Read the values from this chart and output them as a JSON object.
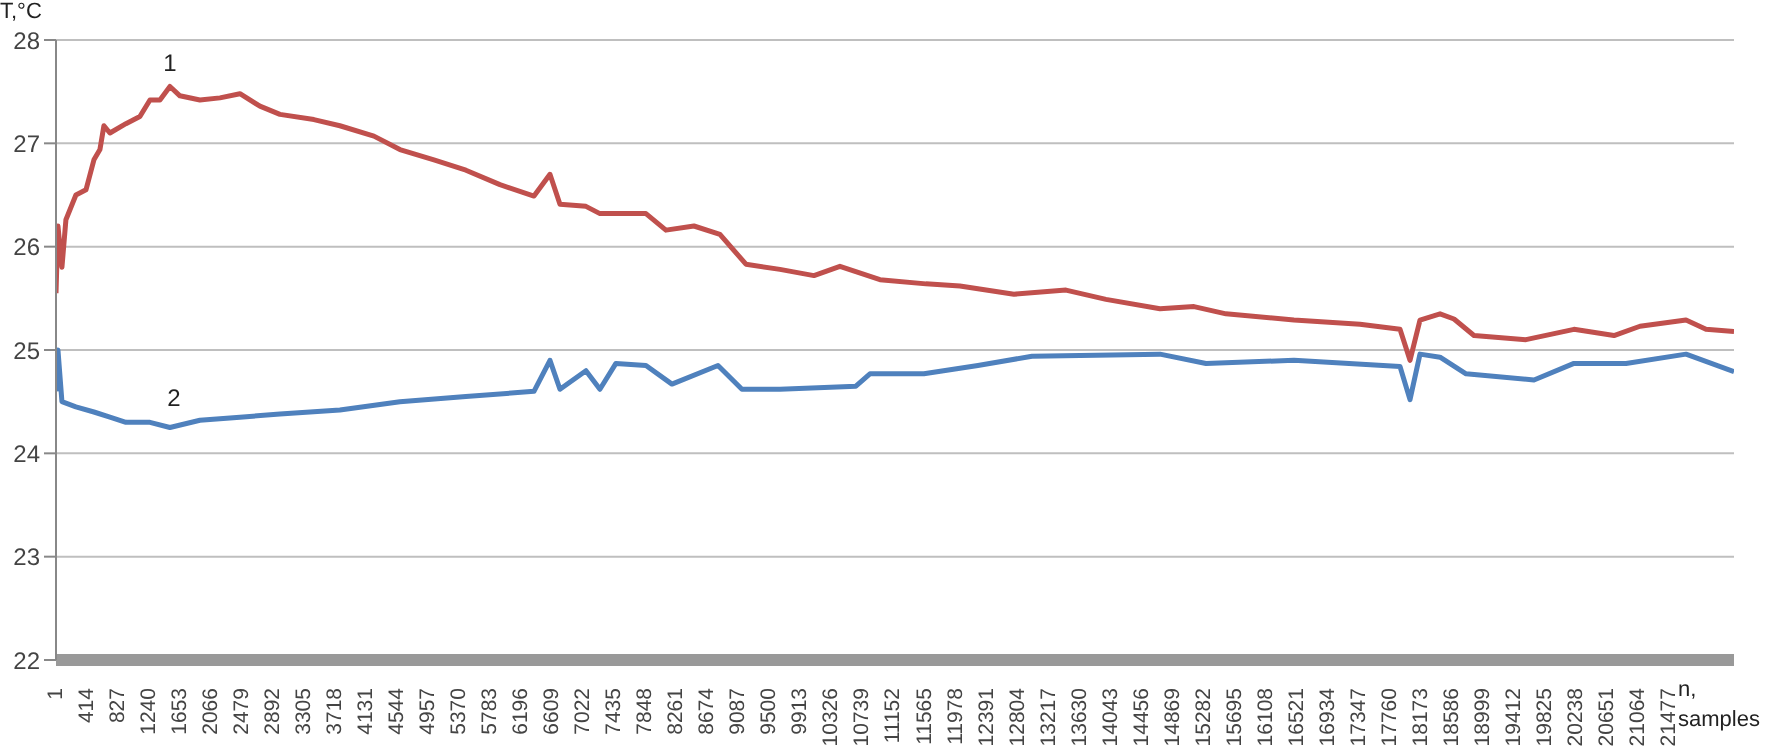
{
  "chart_data": {
    "type": "line",
    "xlabel": "n, samples",
    "ylabel": "T,°C",
    "annotations": [
      {
        "text": "1",
        "x": 1518,
        "y": 27.55
      },
      {
        "text": "2",
        "x": 1571,
        "y": 24.3
      }
    ],
    "xlim": [
      1,
      22343
    ],
    "ylim": [
      22,
      28
    ],
    "yticks": [
      22,
      23,
      24,
      25,
      26,
      27,
      28
    ],
    "xticks": [
      1,
      414,
      827,
      1240,
      1653,
      2066,
      2479,
      2892,
      3305,
      3718,
      4131,
      4544,
      4957,
      5370,
      5783,
      6196,
      6609,
      7022,
      7435,
      7848,
      8261,
      8674,
      9087,
      9500,
      9913,
      10326,
      10739,
      11152,
      11565,
      11978,
      12391,
      12804,
      13217,
      13630,
      14043,
      14456,
      14869,
      15282,
      15695,
      16108,
      16521,
      16934,
      17347,
      17760,
      18173,
      18586,
      18999,
      19412,
      19825,
      20238,
      20651,
      21064,
      21477
    ],
    "grid": "y",
    "series": [
      {
        "color": "#c0504d",
        "x": [
          1,
          27,
          80,
          133,
          266,
          400,
          506,
          586,
          639,
          719,
          932,
          1118,
          1252,
          1385,
          1518,
          1651,
          1917,
          2184,
          2450,
          2716,
          2983,
          3435,
          3781,
          4234,
          4580,
          5033,
          5459,
          5912,
          6365,
          6578,
          6711,
          7057,
          7243,
          7856,
          8122,
          8495,
          8841,
          9187,
          9640,
          10093,
          10439,
          10972,
          11584,
          12037,
          12756,
          13448,
          13981,
          14700,
          15153,
          15579,
          16484,
          17363,
          17896,
          18029,
          18162,
          18429,
          18615,
          18881,
          19573,
          20212,
          20745,
          21091,
          21704,
          21970,
          22343
        ],
        "values": [
          25.55,
          26.2,
          25.8,
          26.26,
          26.5,
          26.55,
          26.84,
          26.94,
          27.17,
          27.1,
          27.19,
          27.26,
          27.42,
          27.42,
          27.55,
          27.46,
          27.42,
          27.44,
          27.48,
          27.36,
          27.28,
          27.23,
          27.17,
          27.07,
          26.94,
          26.84,
          26.74,
          26.6,
          26.49,
          26.7,
          26.41,
          26.39,
          26.32,
          26.32,
          26.16,
          26.2,
          26.12,
          25.83,
          25.78,
          25.72,
          25.81,
          25.68,
          25.64,
          25.62,
          25.54,
          25.58,
          25.49,
          25.4,
          25.42,
          25.35,
          25.29,
          25.25,
          25.2,
          24.9,
          25.29,
          25.35,
          25.3,
          25.14,
          25.1,
          25.2,
          25.14,
          25.23,
          25.29,
          25.2,
          25.18
        ]
      },
      {
        "color": "#4f81bd",
        "x": [
          1,
          27,
          80,
          266,
          506,
          719,
          932,
          1252,
          1518,
          1917,
          2450,
          2983,
          3781,
          4580,
          5459,
          6365,
          6578,
          6711,
          7057,
          7243,
          7456,
          7856,
          8202,
          8815,
          9134,
          9640,
          10651,
          10838,
          11557,
          12276,
          12996,
          14700,
          15313,
          16484,
          17896,
          18029,
          18162,
          18429,
          18775,
          19680,
          20212,
          20905,
          21704,
          22343
        ],
        "values": [
          24.6,
          25.0,
          24.5,
          24.45,
          24.4,
          24.35,
          24.3,
          24.3,
          24.25,
          24.32,
          24.35,
          24.38,
          24.42,
          24.5,
          24.55,
          24.6,
          24.9,
          24.62,
          24.8,
          24.62,
          24.87,
          24.85,
          24.67,
          24.85,
          24.62,
          24.62,
          24.65,
          24.77,
          24.77,
          24.85,
          24.94,
          24.96,
          24.87,
          24.9,
          24.84,
          24.52,
          24.96,
          24.93,
          24.77,
          24.71,
          24.87,
          24.87,
          24.96,
          24.79
        ]
      }
    ]
  }
}
